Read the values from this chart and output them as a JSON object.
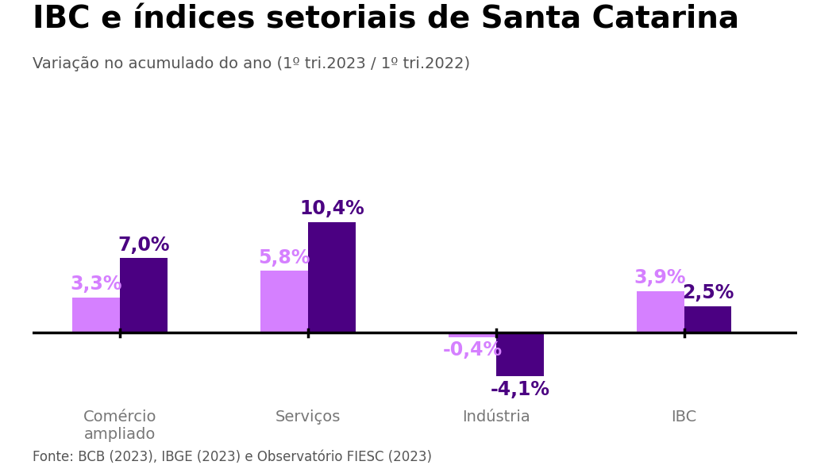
{
  "title": "IBC e índices setoriais de Santa Catarina",
  "subtitle": "Variação no acumulado do ano (1º tri.2023 / 1º tri.2022)",
  "categories": [
    "Comércio\nampliado",
    "Serviços",
    "Indústria",
    "IBC"
  ],
  "brasil_values": [
    3.3,
    5.8,
    -0.4,
    3.9
  ],
  "sc_values": [
    7.0,
    10.4,
    -4.1,
    2.5
  ],
  "brasil_labels": [
    "3,3%",
    "5,8%",
    "-0,4%",
    "3,9%"
  ],
  "sc_labels": [
    "7,0%",
    "10,4%",
    "-4,1%",
    "2,5%"
  ],
  "brasil_color": "#d580ff",
  "sc_color": "#4b0082",
  "background_color": "#ffffff",
  "title_fontsize": 28,
  "subtitle_fontsize": 14,
  "label_fontsize": 17,
  "category_fontsize": 14,
  "legend_fontsize": 16,
  "footer_fontsize": 12,
  "footer": "Fonte: BCB (2023), IBGE (2023) e Observatório FIESC (2023)",
  "ylim": [
    -7.5,
    14.5
  ],
  "bar_width": 0.38,
  "title_color": "#000000",
  "subtitle_color": "#555555",
  "category_color": "#777777",
  "footer_color": "#555555",
  "x_positions": [
    0.7,
    2.2,
    3.7,
    5.2
  ],
  "xlim": [
    0.0,
    6.1
  ]
}
